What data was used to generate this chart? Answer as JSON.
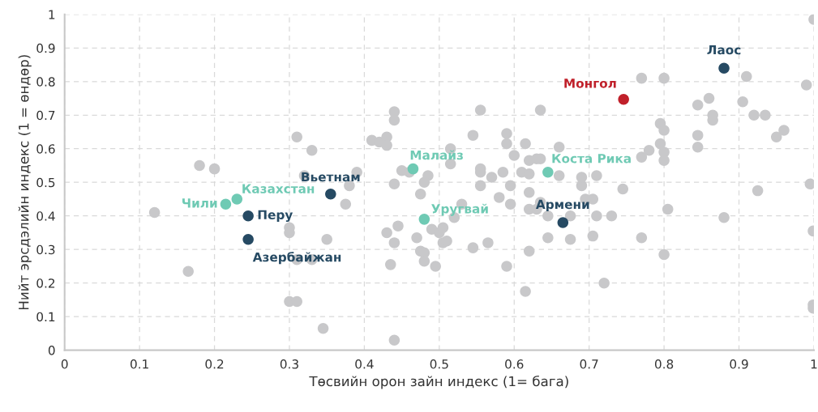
{
  "chart_data": {
    "type": "scatter",
    "xlabel": "Төсвийн орон зайн индекс (1= бага)",
    "ylabel": "Нийт эрсдэлийн индекс (1 = өндөр)",
    "xlim": [
      0,
      1
    ],
    "ylim": [
      0,
      1
    ],
    "xticks": [
      0,
      0.1,
      0.2,
      0.3,
      0.4,
      0.5,
      0.6,
      0.7,
      0.8,
      0.9,
      1
    ],
    "yticks": [
      0,
      0.1,
      0.2,
      0.3,
      0.4,
      0.5,
      0.6,
      0.7,
      0.8,
      0.9,
      1
    ],
    "grid": true,
    "marker": "circle",
    "series": [
      {
        "color": "#c8c8ca",
        "x": [
          0.12,
          0.165,
          0.18,
          0.2,
          0.31,
          0.33,
          0.32,
          0.3,
          0.3,
          0.35,
          0.31,
          0.33,
          0.3,
          0.31,
          0.345,
          0.44,
          0.375,
          0.38,
          0.39,
          0.41,
          0.42,
          0.43,
          0.43,
          0.44,
          0.44,
          0.44,
          0.45,
          0.46,
          0.485,
          0.48,
          0.475,
          0.43,
          0.445,
          0.44,
          0.47,
          0.475,
          0.48,
          0.48,
          0.495,
          0.435,
          0.49,
          0.5,
          0.505,
          0.505,
          0.555,
          0.58,
          0.595,
          0.62,
          0.635,
          0.62,
          0.63,
          0.645,
          0.675,
          0.695,
          0.705,
          0.71,
          0.73,
          0.69,
          0.745,
          0.805,
          0.88,
          0.925,
          0.999,
          0.999,
          0.999,
          0.52,
          0.51,
          0.545,
          0.565,
          0.59,
          0.62,
          0.615,
          0.645,
          0.675,
          0.705,
          0.77,
          0.8,
          0.72,
          0.53,
          1.0,
          0.77,
          0.8,
          0.91,
          0.99,
          0.845,
          0.86,
          0.905,
          0.865,
          0.865,
          0.92,
          0.935,
          0.795,
          0.8,
          0.845,
          0.845,
          0.795,
          0.8,
          0.8,
          0.78,
          0.77,
          0.95,
          0.96,
          0.995,
          0.555,
          0.635,
          0.545,
          0.59,
          0.59,
          0.615,
          0.66,
          0.515,
          0.515,
          0.6,
          0.62,
          0.63,
          0.635,
          0.555,
          0.555,
          0.57,
          0.585,
          0.61,
          0.62,
          0.66,
          0.69,
          0.71,
          0.595
        ],
        "values": [
          0.41,
          0.235,
          0.55,
          0.54,
          0.635,
          0.595,
          0.52,
          0.365,
          0.35,
          0.33,
          0.27,
          0.27,
          0.145,
          0.145,
          0.065,
          0.03,
          0.435,
          0.49,
          0.53,
          0.625,
          0.62,
          0.635,
          0.61,
          0.71,
          0.685,
          0.495,
          0.535,
          0.53,
          0.52,
          0.5,
          0.465,
          0.35,
          0.37,
          0.32,
          0.335,
          0.295,
          0.29,
          0.265,
          0.25,
          0.255,
          0.36,
          0.35,
          0.365,
          0.32,
          0.49,
          0.455,
          0.435,
          0.47,
          0.44,
          0.42,
          0.42,
          0.4,
          0.4,
          0.45,
          0.45,
          0.4,
          0.4,
          0.49,
          0.48,
          0.42,
          0.395,
          0.475,
          0.355,
          0.135,
          0.125,
          0.395,
          0.325,
          0.305,
          0.32,
          0.25,
          0.295,
          0.175,
          0.335,
          0.33,
          0.34,
          0.335,
          0.285,
          0.2,
          0.435,
          0.985,
          0.81,
          0.81,
          0.815,
          0.79,
          0.73,
          0.75,
          0.74,
          0.7,
          0.685,
          0.7,
          0.7,
          0.675,
          0.655,
          0.64,
          0.605,
          0.615,
          0.59,
          0.565,
          0.595,
          0.575,
          0.635,
          0.655,
          0.495,
          0.715,
          0.715,
          0.64,
          0.645,
          0.615,
          0.615,
          0.605,
          0.6,
          0.555,
          0.58,
          0.565,
          0.57,
          0.57,
          0.54,
          0.53,
          0.515,
          0.53,
          0.53,
          0.525,
          0.52,
          0.515,
          0.52,
          0.49
        ]
      },
      {
        "name": "Монгол",
        "color": "#c0202a",
        "x": [
          0.746
        ],
        "values": [
          0.747
        ]
      },
      {
        "name": "Лаос",
        "color": "#264a63",
        "x": [
          0.88
        ],
        "values": [
          0.84
        ]
      },
      {
        "name": "Армени",
        "color": "#264a63",
        "x": [
          0.665
        ],
        "values": [
          0.38
        ]
      },
      {
        "name": "Вьетнам",
        "color": "#264a63",
        "x": [
          0.355
        ],
        "values": [
          0.465
        ]
      },
      {
        "name": "Перу",
        "color": "#264a63",
        "x": [
          0.245
        ],
        "values": [
          0.4
        ]
      },
      {
        "name": "Азербайжан",
        "color": "#264a63",
        "x": [
          0.245
        ],
        "values": [
          0.33
        ]
      },
      {
        "name": "Чили",
        "color": "#6fcab4",
        "x": [
          0.215
        ],
        "values": [
          0.435
        ]
      },
      {
        "name": "Казахстан",
        "color": "#6fcab4",
        "x": [
          0.23
        ],
        "values": [
          0.45
        ]
      },
      {
        "name": "Малайз",
        "color": "#6fcab4",
        "x": [
          0.465
        ],
        "values": [
          0.54
        ]
      },
      {
        "name": "Уругвай",
        "color": "#6fcab4",
        "x": [
          0.48
        ],
        "values": [
          0.39
        ]
      },
      {
        "name": "Коста Рика",
        "color": "#6fcab4",
        "x": [
          0.645
        ],
        "values": [
          0.53
        ]
      }
    ]
  }
}
